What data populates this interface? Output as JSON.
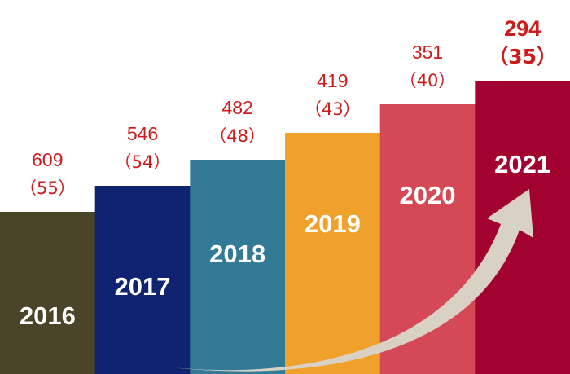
{
  "chart_data": {
    "type": "bar",
    "title": "",
    "xlabel": "",
    "ylabel": "",
    "categories": [
      "2016",
      "2017",
      "2018",
      "2019",
      "2020",
      "2021"
    ],
    "series": [
      {
        "values": [
          609,
          546,
          482,
          419,
          351,
          294
        ]
      },
      {
        "values": [
          55,
          54,
          48,
          43,
          40,
          35
        ]
      }
    ],
    "value_labels": [
      "609",
      "546",
      "482",
      "419",
      "351",
      "294"
    ],
    "paren_labels": [
      "（55）",
      "（54）",
      "（48）",
      "（43）",
      "（40）",
      "（35）"
    ],
    "bar_colors": [
      "#4a4428",
      "#0f2370",
      "#327a95",
      "#f0a12b",
      "#d54855",
      "#a2022f"
    ],
    "label_color": "#cc1d1d",
    "category_label_color": "#ffffff",
    "arrow_color": "#d9d1c3",
    "grid": false,
    "legend": "none"
  }
}
